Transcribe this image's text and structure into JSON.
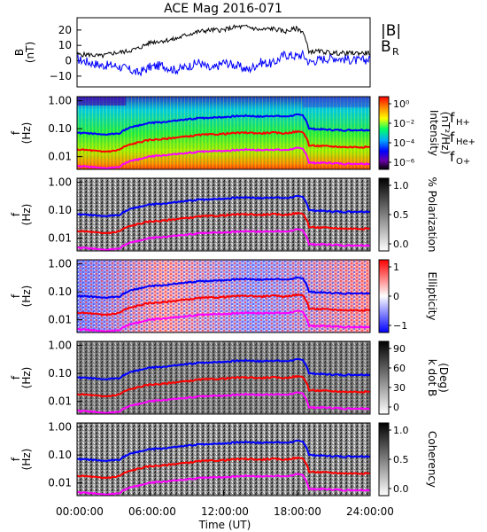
{
  "title": "ACE Mag 2016-071",
  "x_axis": {
    "label": "Time (UT)",
    "ticks": [
      "00:00:00",
      "06:00:00",
      "12:00:00",
      "18:00:00",
      "24:00:00"
    ],
    "range_hours": [
      0,
      24
    ]
  },
  "colors": {
    "B": "#000000",
    "BR": "#0000ff",
    "fH": "#0000ff",
    "fHe": "#ff0000",
    "fO": "#ff00ff"
  },
  "chart_data": [
    {
      "type": "line",
      "panel": "magnetic-field",
      "ylabel": "B (nT)",
      "ylim": [
        -17,
        28
      ],
      "yticks": [
        "20",
        "10",
        "0",
        "−10"
      ],
      "legend": [
        "|B|",
        "B_R"
      ],
      "legend_placement": "right",
      "series": [
        {
          "name": "|B|",
          "x": [
            0,
            1,
            2,
            3,
            4,
            5,
            6,
            7,
            8,
            9,
            10,
            11,
            12,
            13,
            14,
            15,
            16,
            17,
            18,
            18.5,
            19,
            20,
            21,
            22,
            23,
            24
          ],
          "values": [
            4,
            4,
            3,
            5,
            6,
            8,
            12,
            13,
            14,
            17,
            19,
            20,
            20,
            22,
            22,
            20,
            21,
            19,
            21,
            19,
            6,
            6,
            5,
            5,
            5,
            5
          ]
        },
        {
          "name": "B_R",
          "x": [
            0,
            1,
            2,
            3,
            4,
            5,
            6,
            7,
            8,
            9,
            10,
            11,
            12,
            13,
            14,
            15,
            16,
            17,
            18,
            18.5,
            19,
            20,
            21,
            22,
            23,
            24
          ],
          "values": [
            1,
            -1,
            -3,
            -3,
            -5,
            -8,
            -4,
            -3,
            -6,
            -4,
            -1,
            -6,
            -1,
            -3,
            -6,
            -1,
            -2,
            4,
            3,
            4,
            -1,
            1,
            2,
            1,
            0,
            1
          ]
        }
      ]
    },
    {
      "type": "heatmap",
      "panel": "intensity",
      "ylabel": "f (Hz)",
      "yscale": "log",
      "yticks": [
        "1.00",
        "0.10",
        "0.01"
      ],
      "colorbar": {
        "label": "Intensity (nT²/Hz)",
        "ticks": [
          "10⁰",
          "10⁻²",
          "10⁻⁴",
          "10⁻⁶"
        ]
      },
      "legend": [
        "f",
        "H+",
        "He+",
        "O+"
      ]
    },
    {
      "type": "heatmap",
      "panel": "polarization",
      "ylabel": "f (Hz)",
      "yscale": "log",
      "yticks": [
        "1.00",
        "0.10",
        "0.01"
      ],
      "colorbar": {
        "label": "% Polarization",
        "ticks": [
          "1.0",
          "0.5",
          "0.0"
        ]
      }
    },
    {
      "type": "heatmap",
      "panel": "ellipticity",
      "ylabel": "f (Hz)",
      "yscale": "log",
      "yticks": [
        "1.00",
        "0.10",
        "0.01"
      ],
      "colorbar": {
        "label": "Ellipticity",
        "ticks": [
          "1",
          "0",
          "−1"
        ]
      }
    },
    {
      "type": "heatmap",
      "panel": "k-dot-b",
      "ylabel": "f (Hz)",
      "yscale": "log",
      "yticks": [
        "1.00",
        "0.10",
        "0.01"
      ],
      "colorbar": {
        "label": "k dot B (Deg)",
        "ticks": [
          "90",
          "60",
          "30",
          "0"
        ]
      }
    },
    {
      "type": "heatmap",
      "panel": "coherency",
      "ylabel": "f (Hz)",
      "yscale": "log",
      "yticks": [
        "1.00",
        "0.10",
        "0.01"
      ],
      "colorbar": {
        "label": "Coherency",
        "ticks": [
          "1.0",
          "0.5",
          "0.0"
        ]
      }
    }
  ],
  "gyrofrequency": {
    "x": [
      0,
      1,
      2,
      3,
      3.5,
      4,
      5,
      6,
      7,
      8,
      9,
      10,
      11,
      12,
      13,
      14,
      15,
      16,
      17,
      18,
      18.5,
      19,
      20,
      21,
      22,
      23,
      24
    ],
    "fH": [
      0.07,
      0.068,
      0.06,
      0.065,
      0.07,
      0.095,
      0.13,
      0.16,
      0.17,
      0.19,
      0.21,
      0.24,
      0.25,
      0.26,
      0.28,
      0.29,
      0.27,
      0.29,
      0.27,
      0.31,
      0.3,
      0.1,
      0.095,
      0.09,
      0.088,
      0.09,
      0.09
    ],
    "fHe": [
      0.018,
      0.017,
      0.015,
      0.016,
      0.018,
      0.024,
      0.032,
      0.04,
      0.042,
      0.048,
      0.052,
      0.06,
      0.062,
      0.065,
      0.07,
      0.072,
      0.068,
      0.072,
      0.068,
      0.078,
      0.075,
      0.025,
      0.024,
      0.023,
      0.022,
      0.022,
      0.022
    ],
    "fO": [
      0.0045,
      0.0043,
      0.0038,
      0.004,
      0.0045,
      0.006,
      0.008,
      0.01,
      0.011,
      0.012,
      0.013,
      0.015,
      0.016,
      0.016,
      0.017,
      0.018,
      0.017,
      0.018,
      0.017,
      0.02,
      0.019,
      0.006,
      0.006,
      0.0058,
      0.0055,
      0.0056,
      0.0056
    ]
  }
}
